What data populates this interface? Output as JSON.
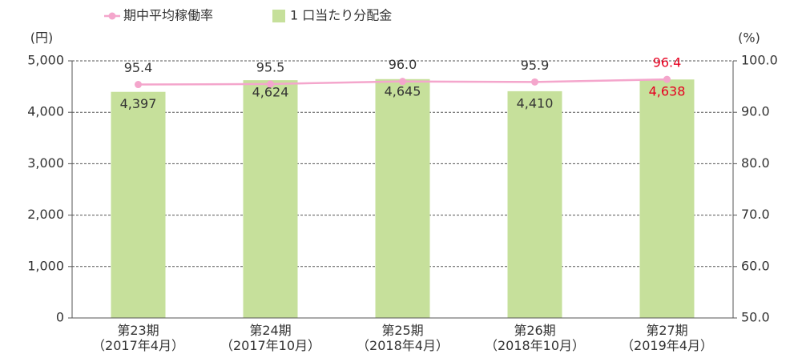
{
  "chart_data": {
    "type": "bar-line",
    "y_label": "(円)",
    "y2_label": "(%)",
    "categories": [
      [
        "第23期",
        "（2017年4月）"
      ],
      [
        "第24期",
        "（2017年10月）"
      ],
      [
        "第25期",
        "（2018年4月）"
      ],
      [
        "第26期",
        "（2018年10月）"
      ],
      [
        "第27期",
        "（2019年4月）"
      ]
    ],
    "series": [
      {
        "name": "期中平均稼働率",
        "type": "line",
        "axis": "y2",
        "color": "#f4a6cc",
        "values": [
          95.4,
          95.5,
          96.0,
          95.9,
          96.4
        ],
        "value_labels": [
          "95.4",
          "95.5",
          "96.0",
          "95.9",
          "96.4"
        ],
        "label_colors": [
          "#333333",
          "#333333",
          "#333333",
          "#333333",
          "#e60020"
        ]
      },
      {
        "name": "1 口当たり分配金",
        "type": "bar",
        "axis": "y",
        "color": "#c6e09b",
        "values": [
          4397,
          4624,
          4645,
          4410,
          4638
        ],
        "value_labels": [
          "4,397",
          "4,624",
          "4,645",
          "4,410",
          "4,638"
        ],
        "label_colors": [
          "#333333",
          "#333333",
          "#333333",
          "#333333",
          "#e60020"
        ]
      }
    ],
    "ylim": [
      0,
      5000
    ],
    "yticks": [
      0,
      {
        "value": 1000,
        "label": "1,000"
      },
      {
        "value": 2000,
        "label": "2,000"
      },
      {
        "value": 3000,
        "label": "3,000"
      },
      {
        "value": 4000,
        "label": "4,000"
      },
      {
        "value": 5000,
        "label": "5,000"
      }
    ],
    "y2lim": [
      50,
      100
    ],
    "y2ticks": [
      {
        "value": 50,
        "label": "50.0"
      },
      {
        "value": 60,
        "label": "60.0"
      },
      {
        "value": 70,
        "label": "70.0"
      },
      {
        "value": 80,
        "label": "80.0"
      },
      {
        "value": 90,
        "label": "90.0"
      },
      {
        "value": 100,
        "label": "100.0"
      }
    ],
    "grid": true
  }
}
